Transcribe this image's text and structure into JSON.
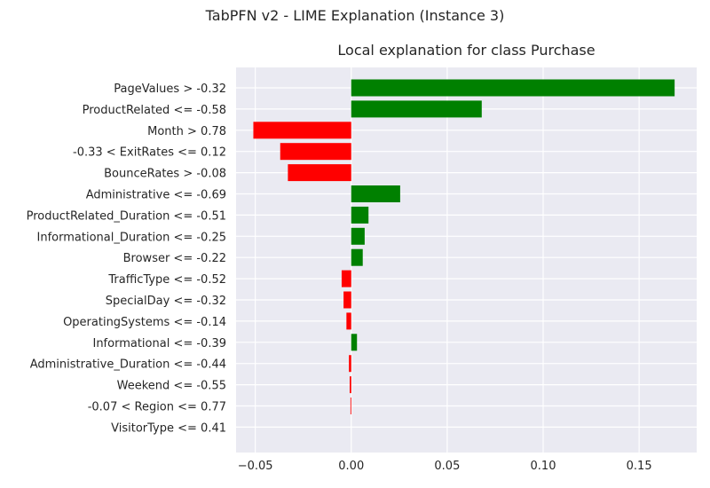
{
  "figure": {
    "suptitle": "TabPFN v2 - LIME Explanation (Instance 3)"
  },
  "chart_data": {
    "type": "bar",
    "orientation": "horizontal",
    "title": "Local explanation for class Purchase",
    "xlabel": "",
    "ylabel": "",
    "xlim": [
      -0.06,
      0.18
    ],
    "xticks": [
      -0.05,
      0.0,
      0.05,
      0.1,
      0.15
    ],
    "xtick_labels": [
      "−0.05",
      "0.00",
      "0.05",
      "0.10",
      "0.15"
    ],
    "grid": true,
    "positive_color": "#008000",
    "negative_color": "#ff0000",
    "background_color": "#eaeaf2",
    "categories": [
      "PageValues > -0.32",
      "ProductRelated <= -0.58",
      "Month > 0.78",
      "-0.33 < ExitRates <= 0.12",
      "BounceRates > -0.08",
      "Administrative <= -0.69",
      "ProductRelated_Duration <= -0.51",
      "Informational_Duration <= -0.25",
      "Browser <= -0.22",
      "TrafficType <= -0.52",
      "SpecialDay <= -0.32",
      "OperatingSystems <= -0.14",
      "Informational <= -0.39",
      "Administrative_Duration <= -0.44",
      "Weekend <= -0.55",
      "-0.07 < Region <= 0.77",
      "VisitorType <= 0.41"
    ],
    "values": [
      0.1685,
      0.068,
      -0.051,
      -0.037,
      -0.033,
      0.0255,
      0.009,
      0.007,
      0.006,
      -0.005,
      -0.004,
      -0.0025,
      0.003,
      -0.0012,
      -0.0008,
      -0.0004,
      0.0
    ]
  }
}
